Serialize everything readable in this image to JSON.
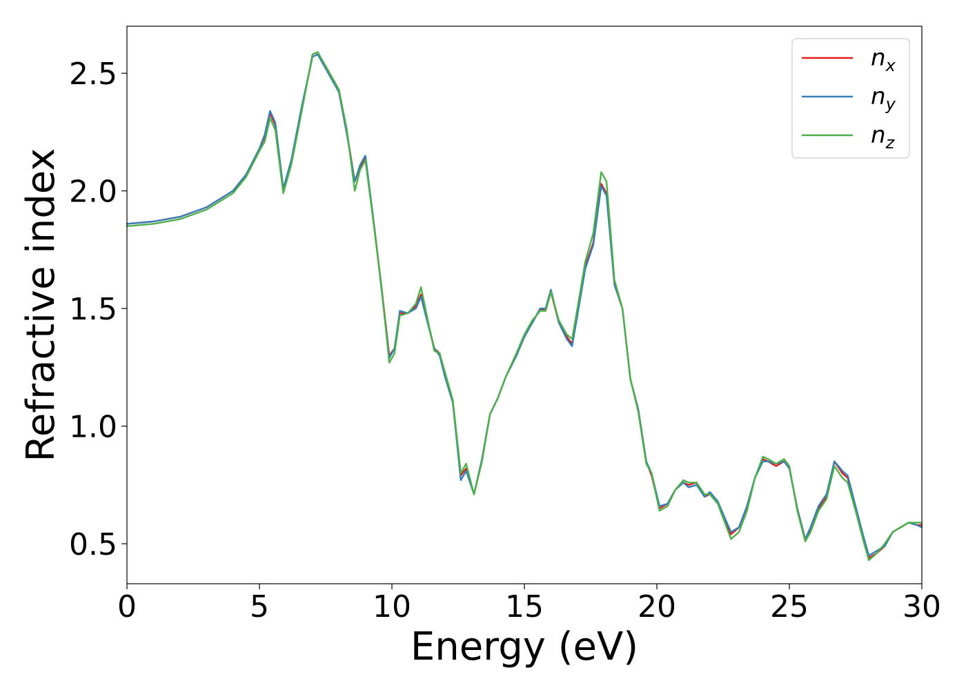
{
  "chart_data": {
    "type": "line",
    "title": "",
    "xlabel": "Energy (eV)",
    "ylabel": "Refractive index",
    "xlim": [
      0,
      30
    ],
    "ylim": [
      0.33,
      2.7
    ],
    "xticks": [
      "0",
      "5",
      "10",
      "15",
      "20",
      "25",
      "30"
    ],
    "yticks": [
      "0.5",
      "1.0",
      "1.5",
      "2.0",
      "2.5"
    ],
    "grid": false,
    "legend_position": "top-right",
    "series": [
      {
        "name": "n_x",
        "symbol": "n",
        "subscript": "x",
        "color": "#e41a1c",
        "x": [
          0,
          1,
          2,
          3,
          4,
          4.5,
          5,
          5.2,
          5.4,
          5.6,
          5.9,
          6.2,
          6.6,
          7.0,
          7.2,
          7.5,
          8.0,
          8.3,
          8.6,
          8.8,
          9.0,
          9.3,
          9.6,
          9.9,
          10.1,
          10.3,
          10.6,
          10.9,
          11.1,
          11.3,
          11.6,
          11.8,
          12.0,
          12.3,
          12.6,
          12.8,
          13.1,
          13.4,
          13.7,
          14.0,
          14.3,
          14.7,
          15.0,
          15.3,
          15.6,
          15.8,
          16.0,
          16.3,
          16.6,
          16.8,
          17.0,
          17.3,
          17.6,
          17.9,
          18.1,
          18.4,
          18.7,
          19.0,
          19.3,
          19.6,
          19.8,
          20.1,
          20.4,
          20.7,
          21.0,
          21.2,
          21.5,
          21.8,
          22.0,
          22.3,
          22.6,
          22.8,
          23.1,
          23.4,
          23.7,
          24.0,
          24.2,
          24.5,
          24.8,
          25.0,
          25.3,
          25.6,
          25.8,
          26.1,
          26.4,
          26.7,
          27.0,
          27.2,
          27.5,
          27.8,
          28.0,
          28.3,
          28.6,
          28.9,
          29.2,
          29.5,
          29.8,
          30.0
        ],
        "y": [
          1.86,
          1.87,
          1.89,
          1.93,
          2.0,
          2.07,
          2.18,
          2.23,
          2.33,
          2.28,
          2.0,
          2.12,
          2.35,
          2.57,
          2.58,
          2.53,
          2.43,
          2.25,
          2.04,
          2.1,
          2.14,
          1.88,
          1.6,
          1.3,
          1.33,
          1.48,
          1.48,
          1.51,
          1.56,
          1.47,
          1.33,
          1.31,
          1.22,
          1.1,
          0.79,
          0.82,
          0.71,
          0.86,
          1.05,
          1.12,
          1.21,
          1.3,
          1.38,
          1.44,
          1.5,
          1.49,
          1.57,
          1.44,
          1.38,
          1.35,
          1.48,
          1.68,
          1.78,
          2.03,
          1.99,
          1.6,
          1.5,
          1.2,
          1.07,
          0.85,
          0.79,
          0.65,
          0.67,
          0.73,
          0.76,
          0.75,
          0.76,
          0.7,
          0.71,
          0.68,
          0.59,
          0.54,
          0.57,
          0.66,
          0.78,
          0.86,
          0.85,
          0.83,
          0.85,
          0.82,
          0.65,
          0.52,
          0.56,
          0.65,
          0.7,
          0.85,
          0.8,
          0.78,
          0.65,
          0.52,
          0.44,
          0.46,
          0.49,
          0.55,
          0.57,
          0.59,
          0.58,
          0.58
        ]
      },
      {
        "name": "n_y",
        "symbol": "n",
        "subscript": "y",
        "color": "#377eb8",
        "x": [
          0,
          1,
          2,
          3,
          4,
          4.5,
          5,
          5.2,
          5.4,
          5.6,
          5.9,
          6.2,
          6.6,
          7.0,
          7.2,
          7.5,
          8.0,
          8.3,
          8.6,
          8.8,
          9.0,
          9.3,
          9.6,
          9.9,
          10.1,
          10.3,
          10.6,
          10.9,
          11.1,
          11.3,
          11.6,
          11.8,
          12.0,
          12.3,
          12.6,
          12.8,
          13.1,
          13.4,
          13.7,
          14.0,
          14.3,
          14.7,
          15.0,
          15.3,
          15.6,
          15.8,
          16.0,
          16.3,
          16.6,
          16.8,
          17.0,
          17.3,
          17.6,
          17.9,
          18.1,
          18.4,
          18.7,
          19.0,
          19.3,
          19.6,
          19.8,
          20.1,
          20.4,
          20.7,
          21.0,
          21.2,
          21.5,
          21.8,
          22.0,
          22.3,
          22.6,
          22.8,
          23.1,
          23.4,
          23.7,
          24.0,
          24.2,
          24.5,
          24.8,
          25.0,
          25.3,
          25.6,
          25.8,
          26.1,
          26.4,
          26.7,
          27.0,
          27.2,
          27.5,
          27.8,
          28.0,
          28.3,
          28.6,
          28.9,
          29.2,
          29.5,
          29.8,
          30.0
        ],
        "y": [
          1.86,
          1.87,
          1.89,
          1.93,
          2.0,
          2.07,
          2.18,
          2.24,
          2.34,
          2.29,
          2.01,
          2.13,
          2.36,
          2.57,
          2.58,
          2.52,
          2.42,
          2.24,
          2.04,
          2.11,
          2.15,
          1.88,
          1.59,
          1.29,
          1.33,
          1.49,
          1.48,
          1.5,
          1.55,
          1.46,
          1.33,
          1.3,
          1.21,
          1.1,
          0.77,
          0.81,
          0.71,
          0.86,
          1.05,
          1.12,
          1.21,
          1.3,
          1.38,
          1.44,
          1.5,
          1.5,
          1.58,
          1.44,
          1.37,
          1.34,
          1.47,
          1.67,
          1.77,
          2.02,
          1.98,
          1.6,
          1.5,
          1.2,
          1.07,
          0.85,
          0.8,
          0.66,
          0.67,
          0.73,
          0.76,
          0.74,
          0.75,
          0.7,
          0.72,
          0.68,
          0.6,
          0.55,
          0.57,
          0.66,
          0.78,
          0.85,
          0.85,
          0.84,
          0.85,
          0.82,
          0.65,
          0.52,
          0.57,
          0.66,
          0.71,
          0.85,
          0.81,
          0.79,
          0.66,
          0.53,
          0.45,
          0.47,
          0.49,
          0.55,
          0.57,
          0.59,
          0.58,
          0.57
        ]
      },
      {
        "name": "n_z",
        "symbol": "n",
        "subscript": "z",
        "color": "#4daf4a",
        "x": [
          0,
          1,
          2,
          3,
          4,
          4.5,
          5,
          5.2,
          5.4,
          5.6,
          5.9,
          6.2,
          6.6,
          7.0,
          7.2,
          7.5,
          8.0,
          8.3,
          8.6,
          8.8,
          9.0,
          9.3,
          9.6,
          9.9,
          10.1,
          10.3,
          10.6,
          10.9,
          11.1,
          11.3,
          11.6,
          11.8,
          12.0,
          12.3,
          12.6,
          12.8,
          13.1,
          13.4,
          13.7,
          14.0,
          14.3,
          14.7,
          15.0,
          15.3,
          15.6,
          15.8,
          16.0,
          16.3,
          16.6,
          16.8,
          17.0,
          17.3,
          17.6,
          17.9,
          18.1,
          18.4,
          18.7,
          19.0,
          19.3,
          19.6,
          19.8,
          20.1,
          20.4,
          20.7,
          21.0,
          21.2,
          21.5,
          21.8,
          22.0,
          22.3,
          22.6,
          22.8,
          23.1,
          23.4,
          23.7,
          24.0,
          24.2,
          24.5,
          24.8,
          25.0,
          25.3,
          25.6,
          25.8,
          26.1,
          26.4,
          26.7,
          27.0,
          27.2,
          27.5,
          27.8,
          28.0,
          28.3,
          28.6,
          28.9,
          29.2,
          29.5,
          29.8,
          30.0
        ],
        "y": [
          1.85,
          1.86,
          1.88,
          1.92,
          1.99,
          2.06,
          2.17,
          2.21,
          2.31,
          2.26,
          1.99,
          2.11,
          2.34,
          2.58,
          2.59,
          2.53,
          2.43,
          2.26,
          2.0,
          2.09,
          2.13,
          1.87,
          1.6,
          1.27,
          1.31,
          1.47,
          1.48,
          1.52,
          1.59,
          1.48,
          1.32,
          1.31,
          1.23,
          1.11,
          0.8,
          0.84,
          0.71,
          0.85,
          1.05,
          1.12,
          1.21,
          1.31,
          1.39,
          1.45,
          1.49,
          1.49,
          1.57,
          1.45,
          1.39,
          1.37,
          1.5,
          1.7,
          1.82,
          2.08,
          2.04,
          1.62,
          1.5,
          1.2,
          1.06,
          0.84,
          0.8,
          0.64,
          0.66,
          0.73,
          0.77,
          0.76,
          0.76,
          0.71,
          0.71,
          0.67,
          0.58,
          0.52,
          0.55,
          0.64,
          0.78,
          0.87,
          0.86,
          0.84,
          0.86,
          0.83,
          0.64,
          0.51,
          0.55,
          0.64,
          0.69,
          0.83,
          0.78,
          0.76,
          0.64,
          0.51,
          0.43,
          0.46,
          0.5,
          0.55,
          0.57,
          0.59,
          0.59,
          0.59
        ]
      }
    ]
  }
}
